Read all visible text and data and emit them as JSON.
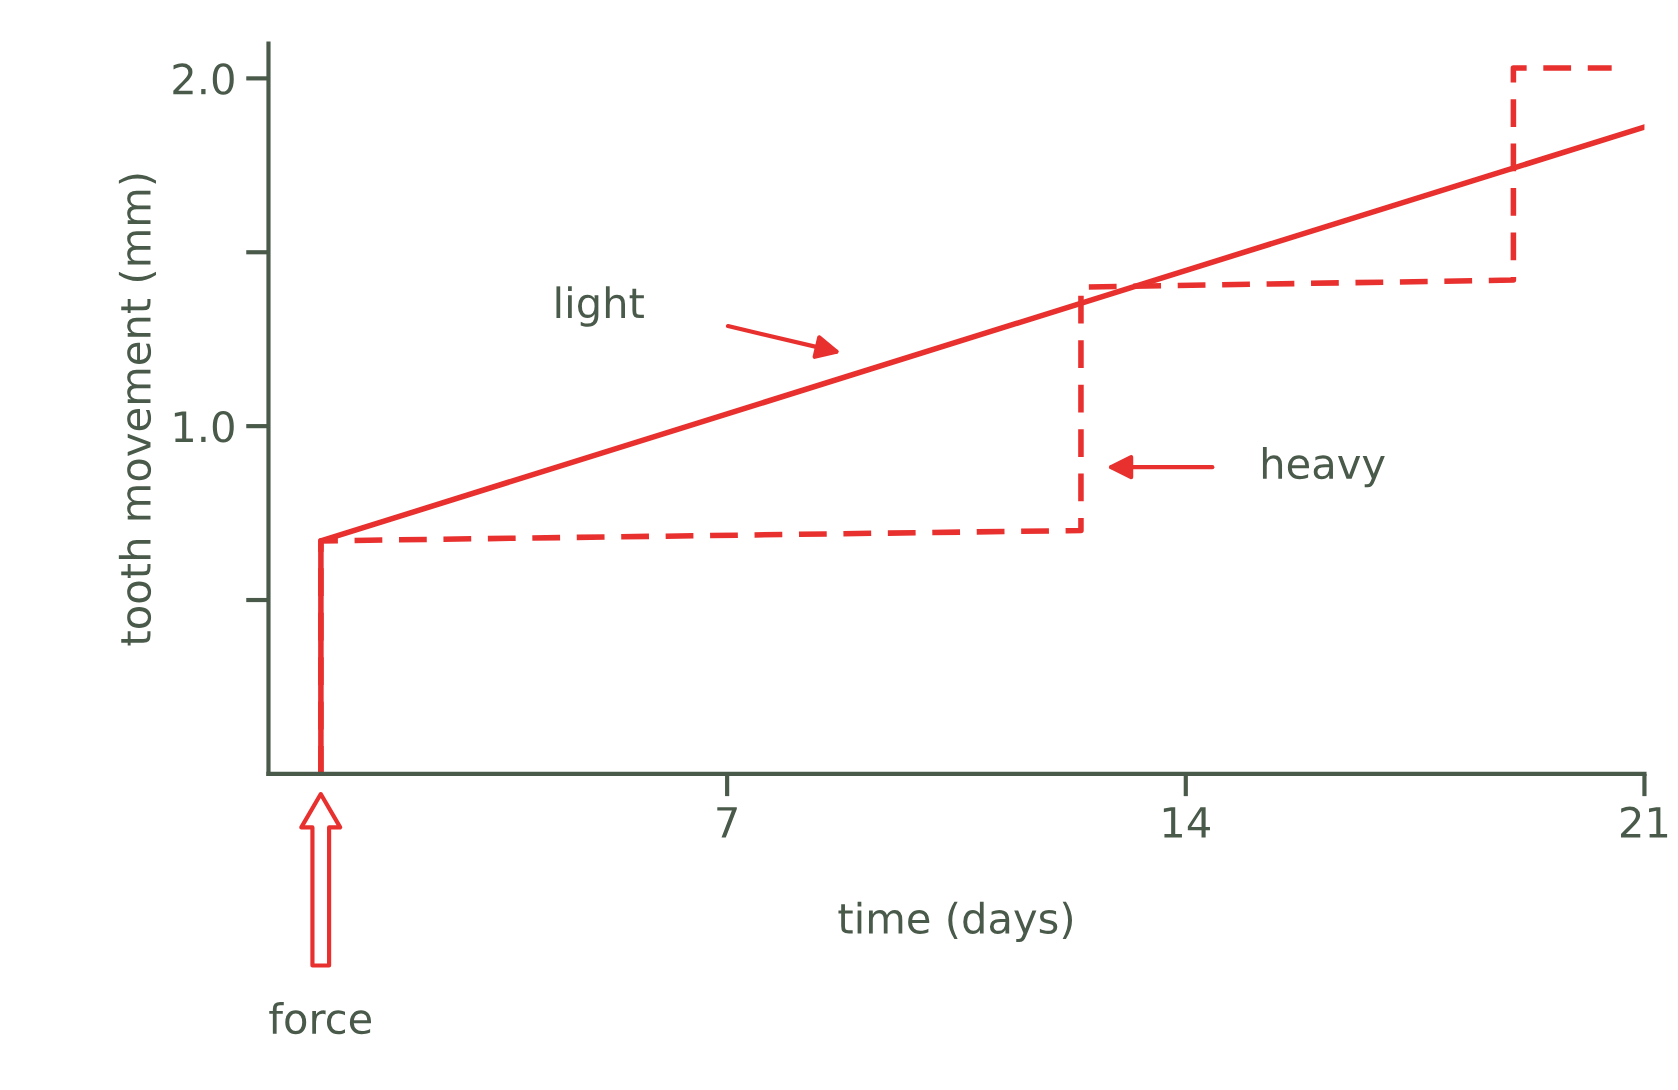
{
  "chart_data": {
    "type": "line",
    "xlabel": "time (days)",
    "ylabel": "tooth movement (mm)",
    "xlim": [
      0,
      21
    ],
    "ylim": [
      0,
      2.1
    ],
    "xticks": [
      7,
      14,
      21
    ],
    "yticks": [
      {
        "value": 0.5,
        "label": null
      },
      {
        "value": 1.0,
        "label": "1.0"
      },
      {
        "value": 1.5,
        "label": null
      },
      {
        "value": 2.0,
        "label": "2.0"
      }
    ],
    "grid": false,
    "legend": false,
    "marker": "none",
    "series": [
      {
        "color": "#e8312f",
        "line_style": "solid",
        "x": [
          0.8,
          0.8,
          21
        ],
        "values": [
          0,
          0.67,
          1.86
        ]
      },
      {
        "color": "#e8312f",
        "line_style": "dashed",
        "x": [
          0.8,
          0.8,
          12.4,
          12.4,
          19.0,
          19.0,
          20.5
        ],
        "values": [
          0,
          0.67,
          0.7,
          1.4,
          1.42,
          2.03,
          2.03
        ]
      }
    ],
    "annotations": [
      "light",
      "heavy",
      "force"
    ]
  }
}
